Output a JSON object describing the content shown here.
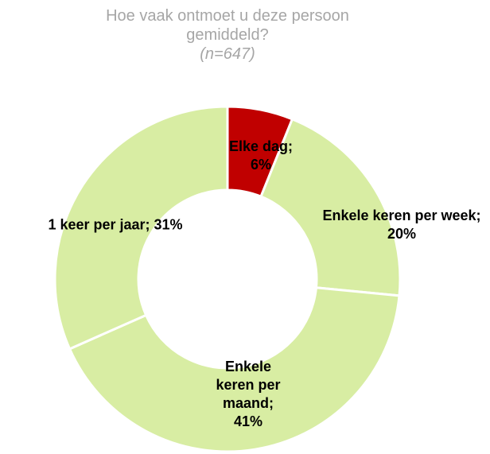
{
  "chart_data": {
    "type": "donut",
    "title": "Hoe vaak ontmoet u deze persoon gemiddeld?",
    "subtitle": "(n=647)",
    "values": [
      6,
      20,
      41,
      31
    ],
    "value_labels": [
      "Elke dag; 6%",
      "Enkele keren per week; 20%",
      "Enkele keren per maand; 41%",
      "1 keer per jaar; 31%"
    ],
    "colors": [
      "#c00000",
      "#d8eda3",
      "#d8eda3",
      "#d8eda3"
    ]
  }
}
